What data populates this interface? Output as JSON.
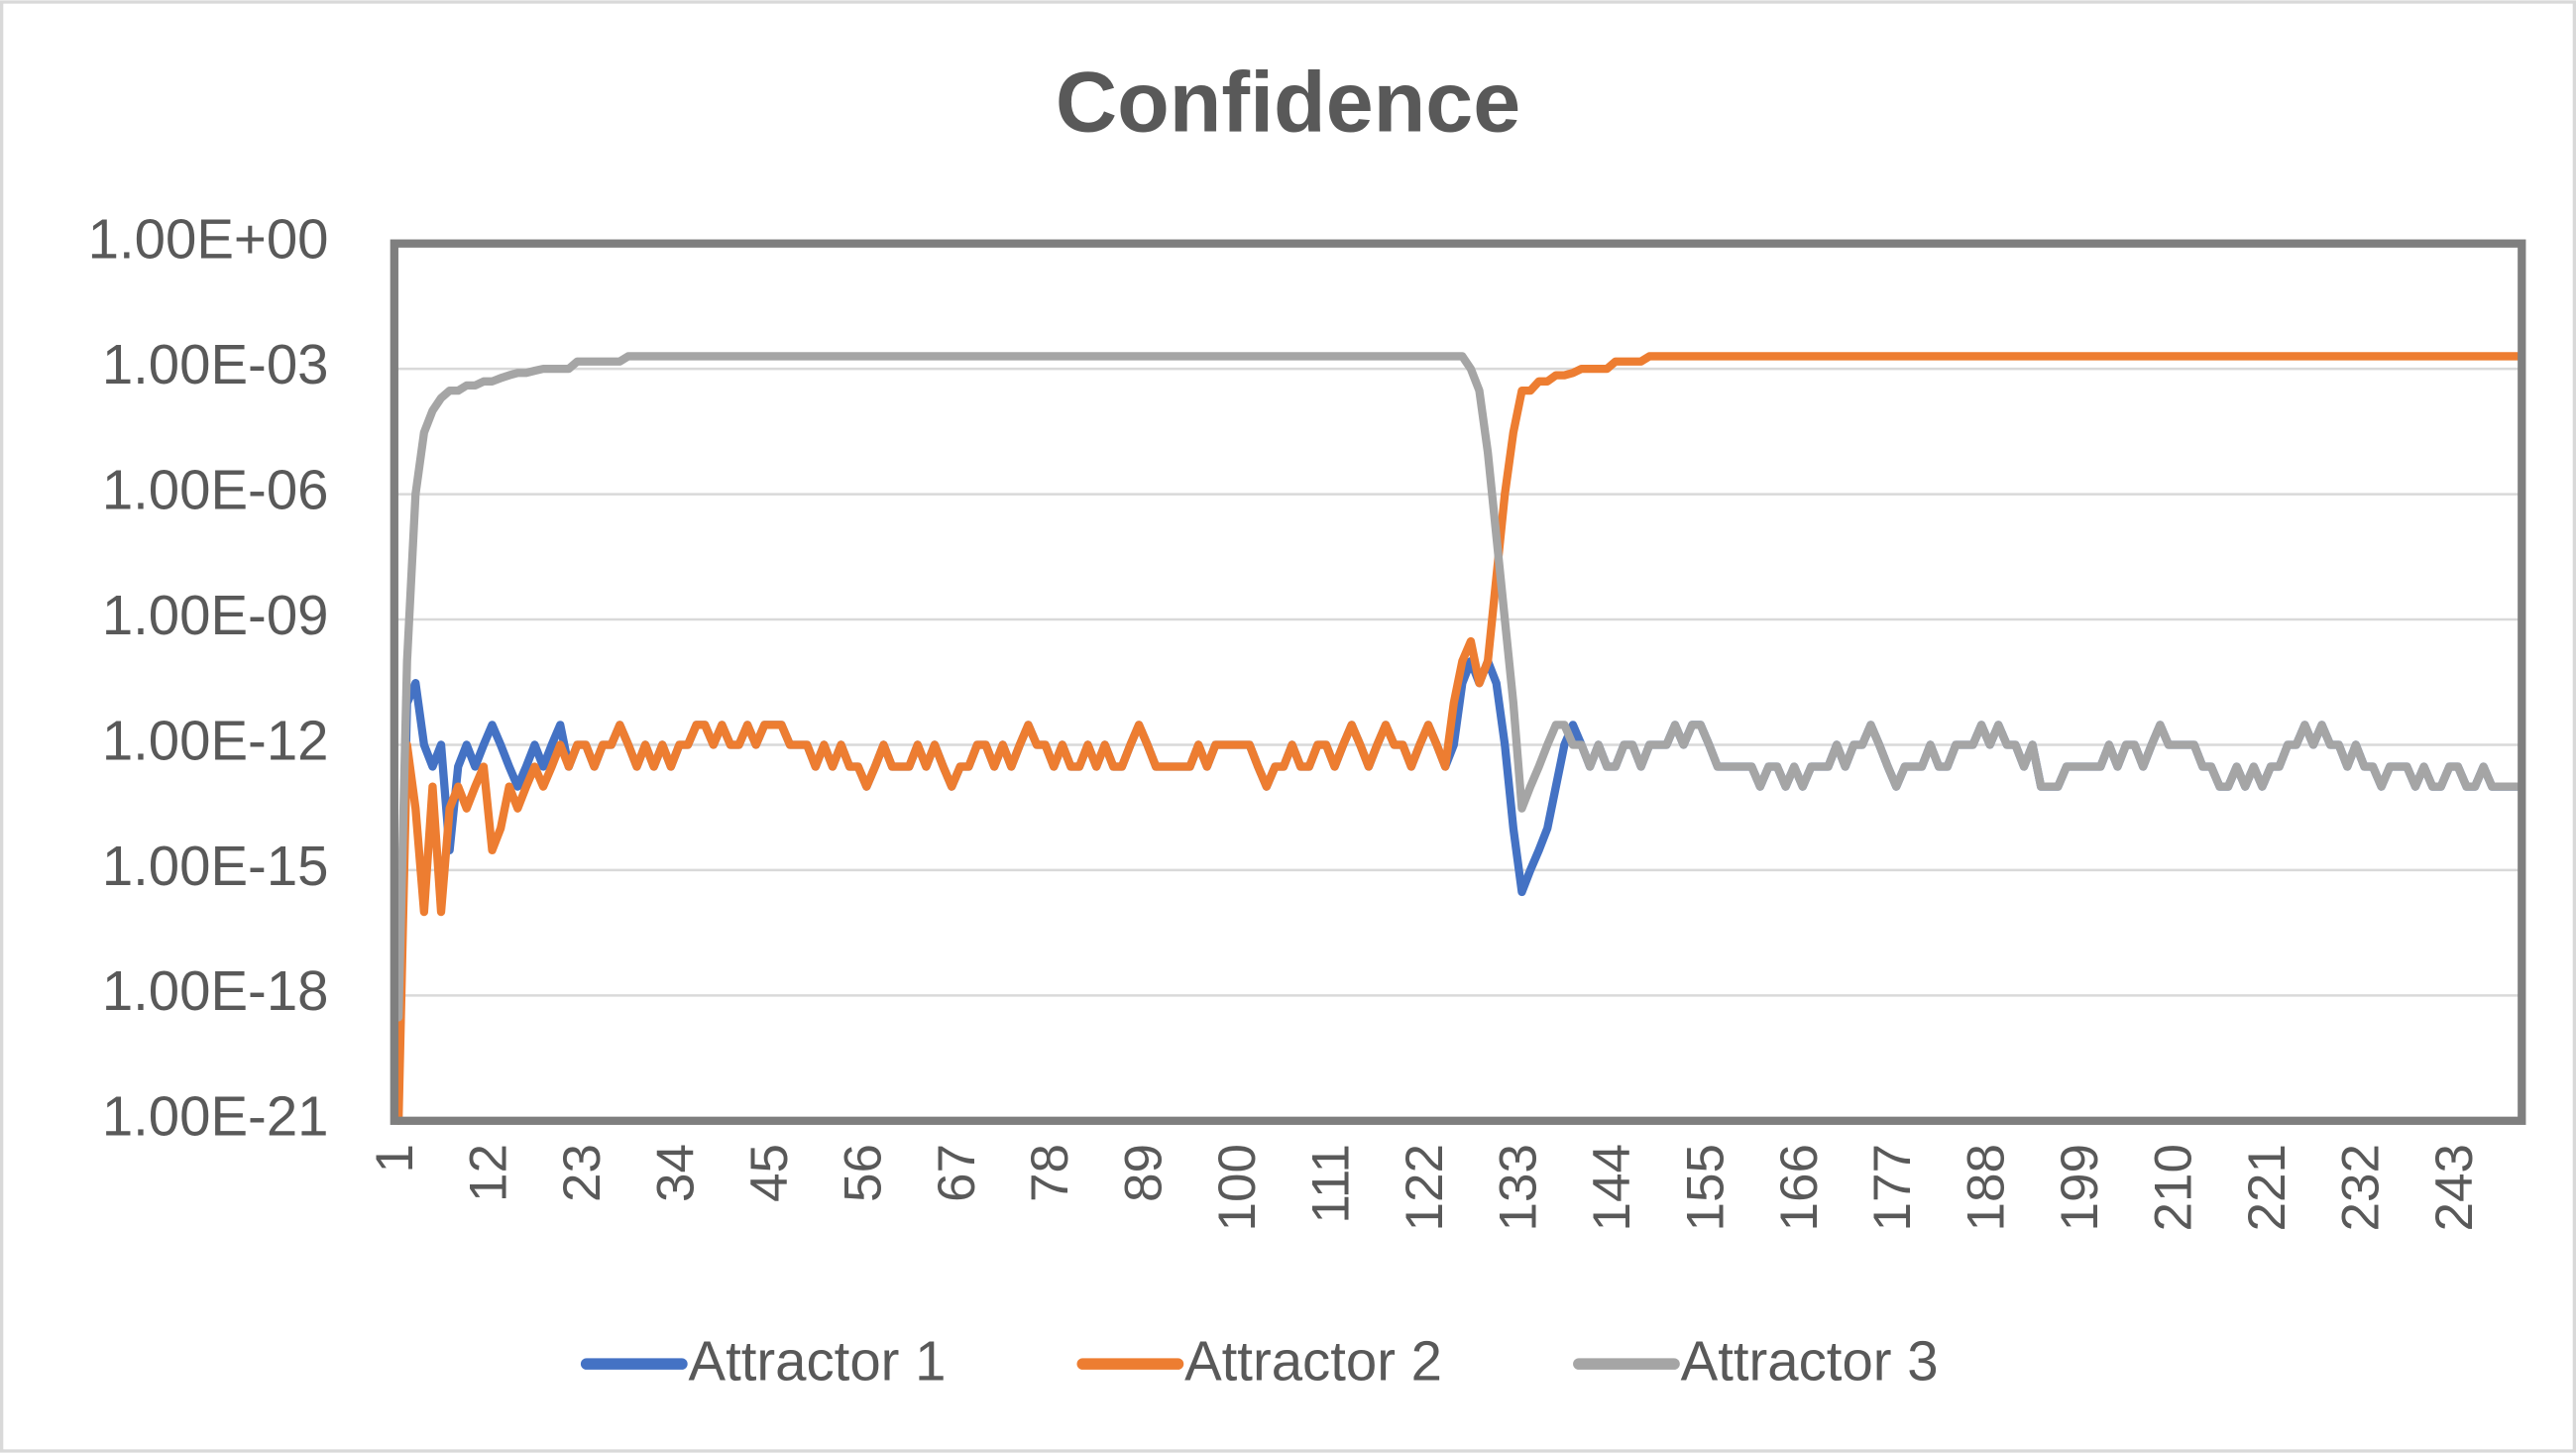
{
  "chart_data": {
    "type": "line",
    "title": "Confidence",
    "log": true,
    "grid": true,
    "legend": "bottom",
    "ylim": [
      1e-21,
      1
    ],
    "yticks": [
      {
        "value": 1e-21,
        "label": "1.00E-21"
      },
      {
        "value": 1e-18,
        "label": "1.00E-18"
      },
      {
        "value": 1e-15,
        "label": "1.00E-15"
      },
      {
        "value": 1e-12,
        "label": "1.00E-12"
      },
      {
        "value": 1e-09,
        "label": "1.00E-09"
      },
      {
        "value": 1e-06,
        "label": "1.00E-06"
      },
      {
        "value": 0.001,
        "label": "1.00E-03"
      },
      {
        "value": 1,
        "label": "1.00E+00"
      }
    ],
    "categories": [
      "1",
      null,
      null,
      null,
      null,
      null,
      null,
      null,
      null,
      null,
      null,
      "12",
      null,
      null,
      null,
      null,
      null,
      null,
      null,
      null,
      null,
      null,
      "23",
      null,
      null,
      null,
      null,
      null,
      null,
      null,
      null,
      null,
      null,
      "34",
      null,
      null,
      null,
      null,
      null,
      null,
      null,
      null,
      null,
      null,
      "45",
      null,
      null,
      null,
      null,
      null,
      null,
      null,
      null,
      null,
      null,
      "56",
      null,
      null,
      null,
      null,
      null,
      null,
      null,
      null,
      null,
      null,
      "67",
      null,
      null,
      null,
      null,
      null,
      null,
      null,
      null,
      null,
      null,
      "78",
      null,
      null,
      null,
      null,
      null,
      null,
      null,
      null,
      null,
      null,
      "89",
      null,
      null,
      null,
      null,
      null,
      null,
      null,
      null,
      null,
      null,
      "100",
      null,
      null,
      null,
      null,
      null,
      null,
      null,
      null,
      null,
      null,
      "111",
      null,
      null,
      null,
      null,
      null,
      null,
      null,
      null,
      null,
      null,
      "122",
      null,
      null,
      null,
      null,
      null,
      null,
      null,
      null,
      null,
      null,
      "133",
      null,
      null,
      null,
      null,
      null,
      null,
      null,
      null,
      null,
      null,
      "144",
      null,
      null,
      null,
      null,
      null,
      null,
      null,
      null,
      null,
      null,
      "155",
      null,
      null,
      null,
      null,
      null,
      null,
      null,
      null,
      null,
      null,
      "166",
      null,
      null,
      null,
      null,
      null,
      null,
      null,
      null,
      null,
      null,
      "177",
      null,
      null,
      null,
      null,
      null,
      null,
      null,
      null,
      null,
      null,
      "188",
      null,
      null,
      null,
      null,
      null,
      null,
      null,
      null,
      null,
      null,
      "199",
      null,
      null,
      null,
      null,
      null,
      null,
      null,
      null,
      null,
      null,
      "210",
      null,
      null,
      null,
      null,
      null,
      null,
      null,
      null,
      null,
      null,
      "221",
      null,
      null,
      null,
      null,
      null,
      null,
      null,
      null,
      null,
      null,
      "232",
      null,
      null,
      null,
      null,
      null,
      null,
      null,
      null,
      null,
      null,
      "243",
      null,
      null,
      null,
      null,
      null,
      null,
      null
    ],
    "series": [
      {
        "name": "Attractor 1",
        "color": "#4472c4",
        "values": [
          1e-20,
          1e-11,
          3e-11,
          1e-12,
          3e-13,
          1e-12,
          3e-15,
          3e-13,
          1e-12,
          3e-13,
          1e-12,
          3e-12,
          1e-12,
          3e-13,
          1e-13,
          3e-13,
          1e-12,
          3e-13,
          1e-12,
          3e-12,
          3e-13,
          1e-12,
          1e-12,
          3e-13,
          1e-12,
          1e-12,
          3e-12,
          1e-12,
          3e-13,
          1e-12,
          3e-13,
          1e-12,
          3e-13,
          1e-12,
          1e-12,
          3e-12,
          3e-12,
          1e-12,
          3e-12,
          1e-12,
          1e-12,
          3e-12,
          1e-12,
          3e-12,
          3e-12,
          3e-12,
          1e-12,
          1e-12,
          1e-12,
          3e-13,
          1e-12,
          3e-13,
          1e-12,
          3e-13,
          3e-13,
          1e-13,
          3e-13,
          1e-12,
          3e-13,
          3e-13,
          3e-13,
          1e-12,
          3e-13,
          1e-12,
          3e-13,
          1e-13,
          3e-13,
          3e-13,
          1e-12,
          1e-12,
          3e-13,
          1e-12,
          3e-13,
          1e-12,
          3e-12,
          1e-12,
          1e-12,
          3e-13,
          1e-12,
          3e-13,
          3e-13,
          1e-12,
          3e-13,
          1e-12,
          3e-13,
          3e-13,
          1e-12,
          3e-12,
          1e-12,
          3e-13,
          3e-13,
          3e-13,
          3e-13,
          3e-13,
          1e-12,
          3e-13,
          1e-12,
          1e-12,
          1e-12,
          1e-12,
          1e-12,
          3e-13,
          1e-13,
          3e-13,
          3e-13,
          1e-12,
          3e-13,
          3e-13,
          1e-12,
          1e-12,
          3e-13,
          1e-12,
          3e-12,
          1e-12,
          3e-13,
          1e-12,
          3e-12,
          1e-12,
          1e-12,
          3e-13,
          1e-12,
          3e-12,
          1e-12,
          3e-13,
          1e-12,
          3e-11,
          1e-10,
          3e-11,
          1e-10,
          3e-11,
          1e-12,
          1e-14,
          3e-16,
          1e-15,
          3e-15,
          1e-14,
          1e-13,
          1e-12,
          3e-12,
          1e-12,
          3e-13,
          1e-12,
          3e-13,
          3e-13,
          1e-12,
          1e-12,
          3e-13,
          1e-12,
          1e-12,
          1e-12,
          3e-12,
          1e-12,
          3e-12,
          3e-12,
          1e-12,
          3e-13,
          3e-13,
          3e-13,
          3e-13,
          3e-13,
          1e-13,
          3e-13,
          3e-13,
          1e-13,
          3e-13,
          1e-13,
          3e-13,
          3e-13,
          3e-13,
          1e-12,
          3e-13,
          1e-12,
          1e-12,
          3e-12,
          1e-12,
          3e-13,
          1e-13,
          3e-13,
          3e-13,
          3e-13,
          1e-12,
          3e-13,
          3e-13,
          1e-12,
          1e-12,
          1e-12,
          3e-12,
          1e-12,
          3e-12,
          1e-12,
          1e-12,
          3e-13,
          1e-12,
          1e-13,
          1e-13,
          1e-13,
          3e-13,
          3e-13,
          3e-13,
          3e-13,
          3e-13,
          1e-12,
          3e-13,
          1e-12,
          1e-12,
          3e-13,
          1e-12,
          3e-12,
          1e-12,
          1e-12,
          1e-12,
          1e-12,
          3e-13,
          3e-13,
          1e-13,
          1e-13,
          3e-13,
          1e-13,
          3e-13,
          1e-13,
          3e-13,
          3e-13,
          1e-12,
          1e-12,
          3e-12,
          1e-12,
          3e-12,
          1e-12,
          1e-12,
          3e-13,
          1e-12,
          3e-13,
          3e-13,
          1e-13,
          3e-13,
          3e-13,
          3e-13,
          1e-13,
          3e-13,
          1e-13,
          1e-13,
          3e-13,
          3e-13,
          1e-13,
          1e-13,
          3e-13,
          1e-13,
          1e-13,
          1e-13,
          1e-13
        ]
      },
      {
        "name": "Attractor 2",
        "color": "#ed7d31",
        "values": [
          1e-21,
          1e-12,
          3e-14,
          1e-16,
          1e-13,
          1e-16,
          3e-14,
          1e-13,
          3e-14,
          1e-13,
          3e-13,
          3e-15,
          1e-14,
          1e-13,
          3e-14,
          1e-13,
          3e-13,
          1e-13,
          3e-13,
          1e-12,
          3e-13,
          1e-12,
          1e-12,
          3e-13,
          1e-12,
          1e-12,
          3e-12,
          1e-12,
          3e-13,
          1e-12,
          3e-13,
          1e-12,
          3e-13,
          1e-12,
          1e-12,
          3e-12,
          3e-12,
          1e-12,
          3e-12,
          1e-12,
          1e-12,
          3e-12,
          1e-12,
          3e-12,
          3e-12,
          3e-12,
          1e-12,
          1e-12,
          1e-12,
          3e-13,
          1e-12,
          3e-13,
          1e-12,
          3e-13,
          3e-13,
          1e-13,
          3e-13,
          1e-12,
          3e-13,
          3e-13,
          3e-13,
          1e-12,
          3e-13,
          1e-12,
          3e-13,
          1e-13,
          3e-13,
          3e-13,
          1e-12,
          1e-12,
          3e-13,
          1e-12,
          3e-13,
          1e-12,
          3e-12,
          1e-12,
          1e-12,
          3e-13,
          1e-12,
          3e-13,
          3e-13,
          1e-12,
          3e-13,
          1e-12,
          3e-13,
          3e-13,
          1e-12,
          3e-12,
          1e-12,
          3e-13,
          3e-13,
          3e-13,
          3e-13,
          3e-13,
          1e-12,
          3e-13,
          1e-12,
          1e-12,
          1e-12,
          1e-12,
          1e-12,
          3e-13,
          1e-13,
          3e-13,
          3e-13,
          1e-12,
          3e-13,
          3e-13,
          1e-12,
          1e-12,
          3e-13,
          1e-12,
          3e-12,
          1e-12,
          3e-13,
          1e-12,
          3e-12,
          1e-12,
          1e-12,
          3e-13,
          1e-12,
          3e-12,
          1e-12,
          3e-13,
          1e-11,
          1e-10,
          3e-10,
          3e-11,
          1e-10,
          1e-08,
          1e-06,
          3e-05,
          0.0003,
          0.0003,
          0.0005,
          0.0005,
          0.0007,
          0.0007,
          0.0008,
          0.001,
          0.001,
          0.001,
          0.001,
          0.0015,
          0.0015,
          0.0015,
          0.0015,
          0.002,
          0.002,
          0.002,
          0.002,
          0.002,
          0.002,
          0.002,
          0.002,
          0.002,
          0.002,
          0.002,
          0.002,
          0.002,
          0.002,
          0.002,
          0.002,
          0.002,
          0.002,
          0.002,
          0.002,
          0.002,
          0.002,
          0.002,
          0.002,
          0.002,
          0.002,
          0.002,
          0.002,
          0.002,
          0.002,
          0.002,
          0.002,
          0.002,
          0.002,
          0.002,
          0.002,
          0.002,
          0.002,
          0.002,
          0.002,
          0.002,
          0.002,
          0.002,
          0.002,
          0.002,
          0.002,
          0.002,
          0.002,
          0.002,
          0.002,
          0.002,
          0.002,
          0.002,
          0.002,
          0.002,
          0.002,
          0.002,
          0.002,
          0.002,
          0.002,
          0.002,
          0.002,
          0.002,
          0.002,
          0.002,
          0.002,
          0.002,
          0.002,
          0.002,
          0.002,
          0.002,
          0.002,
          0.002,
          0.002,
          0.002,
          0.002,
          0.002,
          0.002,
          0.002,
          0.002,
          0.002,
          0.002,
          0.002,
          0.002,
          0.002,
          0.002,
          0.002,
          0.002,
          0.002,
          0.002,
          0.002,
          0.002,
          0.002,
          0.002,
          0.002,
          0.002,
          0.002,
          0.002,
          0.002,
          0.002,
          0.002,
          0.002,
          0.002
        ]
      },
      {
        "name": "Attractor 3",
        "color": "#a5a5a5",
        "values": [
          3e-19,
          1e-10,
          1e-06,
          3e-05,
          0.0001,
          0.0002,
          0.0003,
          0.0003,
          0.0004,
          0.0004,
          0.0005,
          0.0005,
          0.0006,
          0.0007,
          0.0008,
          0.0008,
          0.0009,
          0.001,
          0.001,
          0.001,
          0.001,
          0.0015,
          0.0015,
          0.0015,
          0.0015,
          0.0015,
          0.0015,
          0.002,
          0.002,
          0.002,
          0.002,
          0.002,
          0.002,
          0.002,
          0.002,
          0.002,
          0.002,
          0.002,
          0.002,
          0.002,
          0.002,
          0.002,
          0.002,
          0.002,
          0.002,
          0.002,
          0.002,
          0.002,
          0.002,
          0.002,
          0.002,
          0.002,
          0.002,
          0.002,
          0.002,
          0.002,
          0.002,
          0.002,
          0.002,
          0.002,
          0.002,
          0.002,
          0.002,
          0.002,
          0.002,
          0.002,
          0.002,
          0.002,
          0.002,
          0.002,
          0.002,
          0.002,
          0.002,
          0.002,
          0.002,
          0.002,
          0.002,
          0.002,
          0.002,
          0.002,
          0.002,
          0.002,
          0.002,
          0.002,
          0.002,
          0.002,
          0.002,
          0.002,
          0.002,
          0.002,
          0.002,
          0.002,
          0.002,
          0.002,
          0.002,
          0.002,
          0.002,
          0.002,
          0.002,
          0.002,
          0.002,
          0.002,
          0.002,
          0.002,
          0.002,
          0.002,
          0.002,
          0.002,
          0.002,
          0.002,
          0.002,
          0.002,
          0.002,
          0.002,
          0.002,
          0.002,
          0.002,
          0.002,
          0.002,
          0.002,
          0.002,
          0.002,
          0.002,
          0.002,
          0.002,
          0.002,
          0.001,
          0.0003,
          1e-05,
          1e-07,
          1e-09,
          1e-11,
          3e-14,
          1e-13,
          3e-13,
          1e-12,
          3e-12,
          3e-12,
          1e-12,
          1e-12,
          3e-13,
          1e-12,
          3e-13,
          3e-13,
          1e-12,
          1e-12,
          3e-13,
          1e-12,
          1e-12,
          1e-12,
          3e-12,
          1e-12,
          3e-12,
          3e-12,
          1e-12,
          3e-13,
          3e-13,
          3e-13,
          3e-13,
          3e-13,
          1e-13,
          3e-13,
          3e-13,
          1e-13,
          3e-13,
          1e-13,
          3e-13,
          3e-13,
          3e-13,
          1e-12,
          3e-13,
          1e-12,
          1e-12,
          3e-12,
          1e-12,
          3e-13,
          1e-13,
          3e-13,
          3e-13,
          3e-13,
          1e-12,
          3e-13,
          3e-13,
          1e-12,
          1e-12,
          1e-12,
          3e-12,
          1e-12,
          3e-12,
          1e-12,
          1e-12,
          3e-13,
          1e-12,
          1e-13,
          1e-13,
          1e-13,
          3e-13,
          3e-13,
          3e-13,
          3e-13,
          3e-13,
          1e-12,
          3e-13,
          1e-12,
          1e-12,
          3e-13,
          1e-12,
          3e-12,
          1e-12,
          1e-12,
          1e-12,
          1e-12,
          3e-13,
          3e-13,
          1e-13,
          1e-13,
          3e-13,
          1e-13,
          3e-13,
          1e-13,
          3e-13,
          3e-13,
          1e-12,
          1e-12,
          3e-12,
          1e-12,
          3e-12,
          1e-12,
          1e-12,
          3e-13,
          1e-12,
          3e-13,
          3e-13,
          1e-13,
          3e-13,
          3e-13,
          3e-13,
          1e-13,
          3e-13,
          1e-13,
          1e-13,
          3e-13,
          3e-13,
          1e-13,
          1e-13,
          3e-13,
          1e-13,
          1e-13,
          1e-13,
          1e-13
        ]
      }
    ]
  }
}
